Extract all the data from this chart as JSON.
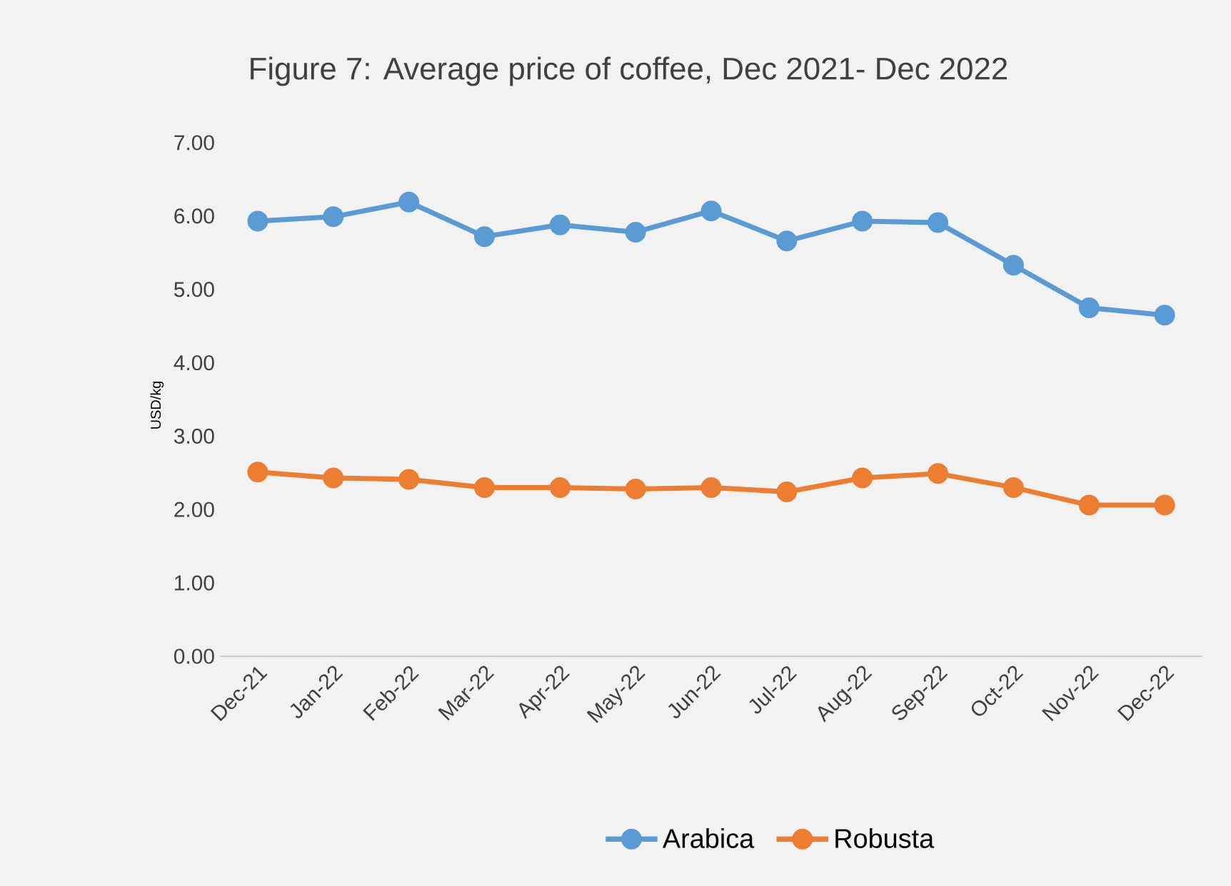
{
  "chart_data": {
    "type": "line",
    "title": "Figure 7:  Average price of coffee, Dec 2021- Dec 2022",
    "ylabel": "USD/kg",
    "categories": [
      "Dec-21",
      "Jan-22",
      "Feb-22",
      "Mar-22",
      "Apr-22",
      "May-22",
      "Jun-22",
      "Jul-22",
      "Aug-22",
      "Sep-22",
      "Oct-22",
      "Nov-22",
      "Dec-22"
    ],
    "series": [
      {
        "name": "Arabica",
        "color": "#5b9bd5",
        "values": [
          5.93,
          5.99,
          6.19,
          5.72,
          5.88,
          5.78,
          6.07,
          5.66,
          5.93,
          5.91,
          5.33,
          4.75,
          4.65
        ]
      },
      {
        "name": "Robusta",
        "color": "#ed7d31",
        "values": [
          2.51,
          2.43,
          2.41,
          2.3,
          2.3,
          2.28,
          2.3,
          2.24,
          2.43,
          2.49,
          2.3,
          2.06,
          2.06
        ]
      }
    ],
    "ylim": [
      0,
      7
    ],
    "yticks": [
      {
        "value": 0,
        "label": "0.00"
      },
      {
        "value": 1,
        "label": "1.00"
      },
      {
        "value": 2,
        "label": "2.00"
      },
      {
        "value": 3,
        "label": "3.00"
      },
      {
        "value": 4,
        "label": "4.00"
      },
      {
        "value": 5,
        "label": "5.00"
      },
      {
        "value": 6,
        "label": "6.00"
      },
      {
        "value": 7,
        "label": "7.00"
      }
    ],
    "legend": "bottom",
    "marker": "circle",
    "line_style": "solid"
  }
}
